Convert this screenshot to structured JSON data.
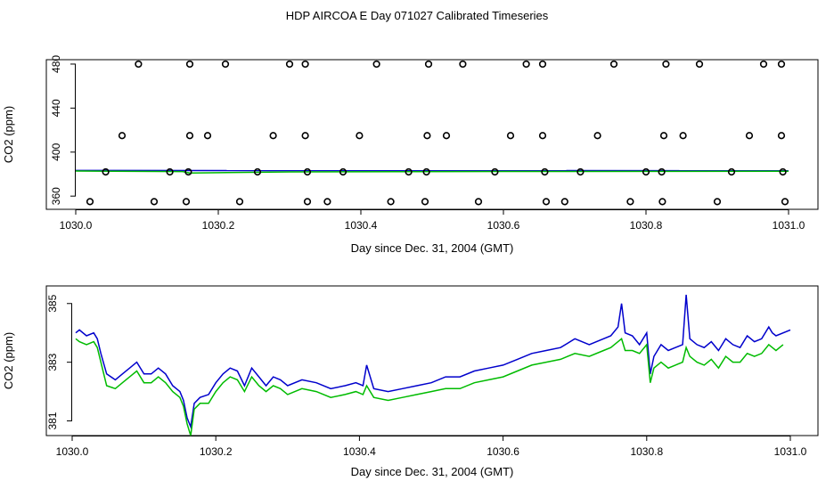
{
  "title": "HDP AIRCOA E  Day 071027  Calibrated Timeseries",
  "chart_data": [
    {
      "type": "scatter",
      "xlabel": "Day since Dec. 31, 2004 (GMT)",
      "ylabel": "CO2 (ppm)",
      "xlim": [
        1030.0,
        1031.0
      ],
      "ylim": [
        348,
        484
      ],
      "xticks": [
        "1030.0",
        "1030.2",
        "1030.4",
        "1030.6",
        "1030.8",
        "1031.0"
      ],
      "yticks": [
        "360",
        "400",
        "440",
        "480"
      ],
      "grid": false,
      "colors": {
        "standards": "#000000",
        "series1": "#0000cc",
        "series2": "#00bb00"
      },
      "standards": [
        [
          1030.02,
          355
        ],
        [
          1030.11,
          355
        ],
        [
          1030.155,
          355
        ],
        [
          1030.23,
          355
        ],
        [
          1030.325,
          355
        ],
        [
          1030.353,
          355
        ],
        [
          1030.442,
          355
        ],
        [
          1030.49,
          355
        ],
        [
          1030.565,
          355
        ],
        [
          1030.66,
          355
        ],
        [
          1030.686,
          355
        ],
        [
          1030.778,
          355
        ],
        [
          1030.823,
          355
        ],
        [
          1030.9,
          355
        ],
        [
          1030.995,
          355
        ],
        [
          1030.042,
          382
        ],
        [
          1030.132,
          382
        ],
        [
          1030.158,
          382
        ],
        [
          1030.255,
          382
        ],
        [
          1030.325,
          382
        ],
        [
          1030.375,
          382
        ],
        [
          1030.467,
          382
        ],
        [
          1030.492,
          382
        ],
        [
          1030.588,
          382
        ],
        [
          1030.658,
          382
        ],
        [
          1030.708,
          382
        ],
        [
          1030.8,
          382
        ],
        [
          1030.822,
          382
        ],
        [
          1030.92,
          382
        ],
        [
          1030.992,
          382
        ],
        [
          1030.065,
          415
        ],
        [
          1030.16,
          415
        ],
        [
          1030.185,
          415
        ],
        [
          1030.277,
          415
        ],
        [
          1030.322,
          415
        ],
        [
          1030.398,
          415
        ],
        [
          1030.493,
          415
        ],
        [
          1030.52,
          415
        ],
        [
          1030.61,
          415
        ],
        [
          1030.655,
          415
        ],
        [
          1030.732,
          415
        ],
        [
          1030.825,
          415
        ],
        [
          1030.852,
          415
        ],
        [
          1030.945,
          415
        ],
        [
          1030.99,
          415
        ],
        [
          1030.088,
          480
        ],
        [
          1030.16,
          480
        ],
        [
          1030.21,
          480
        ],
        [
          1030.3,
          480
        ],
        [
          1030.322,
          480
        ],
        [
          1030.422,
          480
        ],
        [
          1030.495,
          480
        ],
        [
          1030.543,
          480
        ],
        [
          1030.632,
          480
        ],
        [
          1030.655,
          480
        ],
        [
          1030.755,
          480
        ],
        [
          1030.828,
          480
        ],
        [
          1030.875,
          480
        ],
        [
          1030.965,
          480
        ],
        [
          1030.99,
          480
        ]
      ],
      "series": [
        {
          "name": "",
          "color": "#0000cc",
          "x": [
            1030.0,
            1031.0
          ],
          "y": [
            383.3,
            383.1
          ]
        },
        {
          "name": "",
          "color": "#00bb00",
          "x": [
            1030.0,
            1030.15,
            1030.16,
            1030.3,
            1030.6,
            1031.0
          ],
          "y": [
            382.8,
            382.3,
            381.0,
            382.0,
            382.4,
            382.6
          ]
        }
      ]
    },
    {
      "type": "line",
      "xlabel": "Day since Dec. 31, 2004 (GMT)",
      "ylabel": "CO2 (ppm)",
      "xlim": [
        1030.0,
        1031.0
      ],
      "ylim": [
        380.5,
        385.6
      ],
      "xticks": [
        "1030.0",
        "1030.2",
        "1030.4",
        "1030.6",
        "1030.8",
        "1031.0"
      ],
      "yticks": [
        "381",
        "383",
        "385"
      ],
      "grid": false,
      "series": [
        {
          "name": "",
          "color": "#0000cc",
          "x": [
            1030.005,
            1030.01,
            1030.02,
            1030.03,
            1030.035,
            1030.04,
            1030.048,
            1030.06,
            1030.07,
            1030.08,
            1030.09,
            1030.1,
            1030.11,
            1030.12,
            1030.13,
            1030.14,
            1030.15,
            1030.155,
            1030.16,
            1030.165,
            1030.17,
            1030.178,
            1030.19,
            1030.2,
            1030.21,
            1030.22,
            1030.23,
            1030.24,
            1030.25,
            1030.26,
            1030.27,
            1030.28,
            1030.29,
            1030.3,
            1030.32,
            1030.34,
            1030.36,
            1030.38,
            1030.395,
            1030.405,
            1030.41,
            1030.42,
            1030.44,
            1030.46,
            1030.48,
            1030.5,
            1030.52,
            1030.54,
            1030.56,
            1030.58,
            1030.6,
            1030.62,
            1030.64,
            1030.66,
            1030.68,
            1030.7,
            1030.72,
            1030.74,
            1030.75,
            1030.76,
            1030.765,
            1030.77,
            1030.78,
            1030.79,
            1030.8,
            1030.805,
            1030.81,
            1030.82,
            1030.83,
            1030.84,
            1030.85,
            1030.855,
            1030.86,
            1030.87,
            1030.88,
            1030.89,
            1030.9,
            1030.91,
            1030.92,
            1030.93,
            1030.94,
            1030.95,
            1030.96,
            1030.97,
            1030.975,
            1030.98,
            1031.0
          ],
          "y": [
            384.0,
            384.1,
            383.9,
            384.0,
            383.8,
            383.3,
            382.6,
            382.4,
            382.6,
            382.8,
            383.0,
            382.6,
            382.6,
            382.8,
            382.6,
            382.2,
            382.0,
            381.7,
            381.1,
            380.8,
            381.6,
            381.8,
            381.9,
            382.3,
            382.6,
            382.8,
            382.7,
            382.2,
            382.8,
            382.5,
            382.2,
            382.5,
            382.4,
            382.2,
            382.4,
            382.3,
            382.1,
            382.2,
            382.3,
            382.2,
            382.9,
            382.1,
            382.0,
            382.1,
            382.2,
            382.3,
            382.5,
            382.5,
            382.7,
            382.8,
            382.9,
            383.1,
            383.3,
            383.4,
            383.5,
            383.8,
            383.6,
            383.8,
            383.9,
            384.2,
            385.0,
            384.0,
            383.9,
            383.6,
            384.0,
            382.6,
            383.2,
            383.6,
            383.4,
            383.5,
            383.6,
            385.3,
            383.8,
            383.6,
            383.5,
            383.7,
            383.4,
            383.8,
            383.6,
            383.5,
            383.9,
            383.7,
            383.8,
            384.2,
            384.0,
            383.9,
            384.1
          ]
        },
        {
          "name": "",
          "color": "#00bb00",
          "x": [
            1030.005,
            1030.01,
            1030.02,
            1030.03,
            1030.035,
            1030.04,
            1030.048,
            1030.06,
            1030.07,
            1030.08,
            1030.09,
            1030.1,
            1030.11,
            1030.12,
            1030.13,
            1030.14,
            1030.15,
            1030.155,
            1030.16,
            1030.165,
            1030.17,
            1030.178,
            1030.19,
            1030.2,
            1030.21,
            1030.22,
            1030.23,
            1030.24,
            1030.25,
            1030.26,
            1030.27,
            1030.28,
            1030.29,
            1030.3,
            1030.32,
            1030.34,
            1030.36,
            1030.38,
            1030.395,
            1030.405,
            1030.41,
            1030.42,
            1030.44,
            1030.46,
            1030.48,
            1030.5,
            1030.52,
            1030.54,
            1030.56,
            1030.58,
            1030.6,
            1030.62,
            1030.64,
            1030.66,
            1030.68,
            1030.7,
            1030.72,
            1030.74,
            1030.75,
            1030.76,
            1030.765,
            1030.77,
            1030.78,
            1030.79,
            1030.8,
            1030.805,
            1030.81,
            1030.82,
            1030.83,
            1030.84,
            1030.85,
            1030.855,
            1030.86,
            1030.87,
            1030.88,
            1030.89,
            1030.9,
            1030.91,
            1030.92,
            1030.93,
            1030.94,
            1030.95,
            1030.96,
            1030.97,
            1030.975,
            1030.98,
            1030.99
          ],
          "y": [
            383.8,
            383.7,
            383.6,
            383.7,
            383.5,
            383.0,
            382.2,
            382.1,
            382.3,
            382.5,
            382.7,
            382.3,
            382.3,
            382.5,
            382.3,
            382.0,
            381.8,
            381.5,
            380.9,
            380.5,
            381.4,
            381.6,
            381.6,
            382.0,
            382.3,
            382.5,
            382.4,
            382.0,
            382.5,
            382.2,
            382.0,
            382.2,
            382.1,
            381.9,
            382.1,
            382.0,
            381.8,
            381.9,
            382.0,
            381.9,
            382.2,
            381.8,
            381.7,
            381.8,
            381.9,
            382.0,
            382.1,
            382.1,
            382.3,
            382.4,
            382.5,
            382.7,
            382.9,
            383.0,
            383.1,
            383.3,
            383.2,
            383.4,
            383.5,
            383.7,
            383.8,
            383.4,
            383.4,
            383.3,
            383.6,
            382.3,
            382.8,
            383.0,
            382.8,
            382.9,
            383.0,
            383.5,
            383.2,
            383.0,
            382.9,
            383.1,
            382.8,
            383.2,
            383.0,
            383.0,
            383.3,
            383.2,
            383.3,
            383.6,
            383.5,
            383.4,
            383.6
          ]
        }
      ]
    }
  ]
}
